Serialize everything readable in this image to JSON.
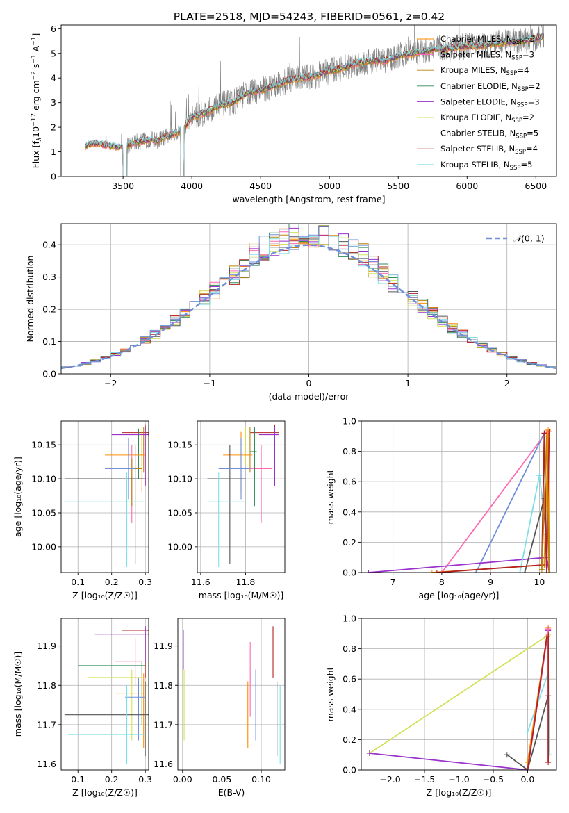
{
  "figure_title": "PLATE=2518, MJD=54243, FIBERID=0561, z=0.42",
  "colors": {
    "Chabrier MILES": "#ff8c00",
    "Salpeter MILES": "#ff69b4",
    "Kroupa MILES": "#b8860b",
    "Chabrier ELODIE": "#2e8b57",
    "Salpeter ELODIE": "#9932cc",
    "Kroupa ELODIE": "#d4e157",
    "Chabrier STELIB": "#555555",
    "Salpeter STELIB": "#b22222",
    "Kroupa STELIB": "#7fdfe6",
    "blue": "#6f8fd8",
    "data": "#808080"
  },
  "chart_data": [
    {
      "id": "spectrum",
      "type": "line",
      "xlabel": "wavelength [Angstrom, rest frame]",
      "ylabel_parts": [
        "Flux [f",
        "λ",
        "10",
        "−17",
        " erg cm",
        "−2",
        " s",
        "−1",
        " A",
        "−1",
        "]"
      ],
      "xlim": [
        3050,
        6650
      ],
      "ylim": [
        0,
        6.15
      ],
      "xticks": [
        3500,
        4000,
        4500,
        5000,
        5500,
        6000,
        6500
      ],
      "yticks": [
        0,
        1,
        2,
        3,
        4,
        5,
        6
      ],
      "legend_position": "upper right",
      "legend": [
        {
          "name": "Chabrier MILES",
          "nssp": "5"
        },
        {
          "name": "Salpeter MILES",
          "nssp": "3"
        },
        {
          "name": "Kroupa MILES",
          "nssp": "4"
        },
        {
          "name": "Chabrier ELODIE",
          "nssp": "2"
        },
        {
          "name": "Salpeter ELODIE",
          "nssp": "3"
        },
        {
          "name": "Kroupa ELODIE",
          "nssp": "2"
        },
        {
          "name": "Chabrier STELIB",
          "nssp": "5"
        },
        {
          "name": "Salpeter STELIB",
          "nssp": "4"
        },
        {
          "name": "Kroupa STELIB",
          "nssp": "5"
        }
      ],
      "nssp_label": "N",
      "nssp_sub": "SSP",
      "continuum": {
        "x": [
          3220,
          3250,
          3300,
          3350,
          3400,
          3450,
          3500,
          3550,
          3600,
          3650,
          3700,
          3750,
          3800,
          3850,
          3900,
          3950,
          4000,
          4100,
          4200,
          4300,
          4400,
          4500,
          4600,
          4700,
          4800,
          4900,
          5000,
          5100,
          5200,
          5300,
          5400,
          5500,
          5600,
          5700,
          5800,
          5900,
          6000,
          6100,
          6200,
          6300,
          6400,
          6500,
          6550
        ],
        "y": [
          1.2,
          1.3,
          1.35,
          1.3,
          1.25,
          1.2,
          1.2,
          1.3,
          1.4,
          1.45,
          1.5,
          1.45,
          1.6,
          1.7,
          1.8,
          2.0,
          2.4,
          2.6,
          2.9,
          3.0,
          3.4,
          3.5,
          3.7,
          3.9,
          4.0,
          4.1,
          4.3,
          4.4,
          4.6,
          4.7,
          4.7,
          4.9,
          5.0,
          5.1,
          5.2,
          5.2,
          5.3,
          5.3,
          5.4,
          5.45,
          5.5,
          5.6,
          5.7
        ]
      }
    },
    {
      "id": "residuals",
      "type": "histogram",
      "xlabel": "(data-model)/error",
      "ylabel": "Normed distribution",
      "xlim": [
        -2.5,
        2.5
      ],
      "ylim": [
        0,
        0.465
      ],
      "xticks": [
        -2,
        -1,
        0,
        1,
        2
      ],
      "yticks": [
        0.0,
        0.1,
        0.2,
        0.3,
        0.4
      ],
      "grid": true,
      "legend_position": "upper right",
      "gaussian_label_script": "𝒩",
      "gaussian_label_args": "(0, 1)",
      "bin_width": 0.1
    },
    {
      "id": "age_vs_Z",
      "type": "errorbar",
      "xlabel": "Z [log₁₀(Z/Z☉)]",
      "ylabel": "age  [log₁₀(age/yr)]",
      "xlim": [
        0.05,
        0.31
      ],
      "ylim": [
        9.962,
        10.185
      ],
      "xticks": [
        0.1,
        0.2,
        0.3
      ],
      "yticks": [
        10.0,
        10.05,
        10.1,
        10.15
      ],
      "grid": true,
      "points": [
        {
          "model": "Salpeter STELIB",
          "x": 0.3,
          "y": 10.168,
          "x_lo": 0.23,
          "x_hi": 0.31,
          "y_lo": 10.09,
          "y_hi": 10.18
        },
        {
          "model": "Kroupa MILES",
          "x": 0.295,
          "y": 10.163,
          "x_lo": 0.1,
          "x_hi": 0.3,
          "y_lo": 10.11,
          "y_hi": 10.176
        },
        {
          "model": "Kroupa ELODIE",
          "x": 0.29,
          "y": 10.163,
          "x_lo": 0.15,
          "x_hi": 0.3,
          "y_lo": 10.12,
          "y_hi": 10.176
        },
        {
          "model": "Chabrier ELODIE",
          "x": 0.28,
          "y": 10.163,
          "x_lo": 0.1,
          "x_hi": 0.29,
          "y_lo": 10.1,
          "y_hi": 10.174
        },
        {
          "model": "Salpeter ELODIE",
          "x": 0.3,
          "y": 10.165,
          "x_lo": 0.2,
          "x_hi": 0.31,
          "y_lo": 10.09,
          "y_hi": 10.176
        },
        {
          "model": "Chabrier MILES",
          "x": 0.29,
          "y": 10.135,
          "x_lo": 0.18,
          "x_hi": 0.3,
          "y_lo": 10.08,
          "y_hi": 10.17
        },
        {
          "model": "Salpeter MILES",
          "x": 0.26,
          "y": 10.115,
          "x_lo": 0.21,
          "x_hi": 0.29,
          "y_lo": 10.035,
          "y_hi": 10.15
        },
        {
          "model": "Kroupa MILES",
          "x": 0.26,
          "y": 10.115,
          "x_lo": 0.2,
          "x_hi": 0.29,
          "y_lo": 10.06,
          "y_hi": 10.13
        },
        {
          "model": "Chabrier STELIB",
          "x": 0.27,
          "y": 10.1,
          "x_lo": 0.06,
          "x_hi": 0.3,
          "y_lo": 9.975,
          "y_hi": 10.15
        },
        {
          "model": "Kroupa STELIB",
          "x": 0.245,
          "y": 10.066,
          "x_lo": 0.06,
          "x_hi": 0.3,
          "y_lo": 9.97,
          "y_hi": 10.11
        },
        {
          "model": "blue",
          "x": 0.25,
          "y": 10.115,
          "x_lo": 0.18,
          "x_hi": 0.27,
          "y_lo": 10.07,
          "y_hi": 10.16
        }
      ]
    },
    {
      "id": "age_vs_mass",
      "type": "errorbar",
      "xlabel": "mass [log₁₀(M/M☉)]",
      "xlim": [
        11.585,
        11.975
      ],
      "ylim": [
        9.962,
        10.185
      ],
      "xticks": [
        11.6,
        11.8
      ],
      "yticks": [
        10.0,
        10.05,
        10.1,
        10.15
      ],
      "grid": true,
      "points": [
        {
          "model": "Salpeter STELIB",
          "x": 11.93,
          "y": 10.168,
          "x_lo": 11.82,
          "x_hi": 11.95,
          "y_lo": 10.09,
          "y_hi": 10.18
        },
        {
          "model": "Kroupa MILES",
          "x": 11.82,
          "y": 10.163,
          "x_lo": 11.7,
          "x_hi": 11.86,
          "y_lo": 10.11,
          "y_hi": 10.176
        },
        {
          "model": "Kroupa ELODIE",
          "x": 11.8,
          "y": 10.163,
          "x_lo": 11.66,
          "x_hi": 11.84,
          "y_lo": 10.12,
          "y_hi": 10.176
        },
        {
          "model": "Chabrier ELODIE",
          "x": 11.84,
          "y": 10.163,
          "x_lo": 11.7,
          "x_hi": 11.86,
          "y_lo": 10.1,
          "y_hi": 10.174
        },
        {
          "model": "Salpeter ELODIE",
          "x": 11.93,
          "y": 10.165,
          "x_lo": 11.86,
          "x_hi": 11.95,
          "y_lo": 10.09,
          "y_hi": 10.176
        },
        {
          "model": "Chabrier MILES",
          "x": 11.78,
          "y": 10.135,
          "x_lo": 11.7,
          "x_hi": 11.83,
          "y_lo": 10.08,
          "y_hi": 10.17
        },
        {
          "model": "Salpeter MILES",
          "x": 11.87,
          "y": 10.115,
          "x_lo": 11.8,
          "x_hi": 11.92,
          "y_lo": 10.035,
          "y_hi": 10.15
        },
        {
          "model": "Chabrier STELIB",
          "x": 11.73,
          "y": 10.1,
          "x_lo": 11.63,
          "x_hi": 11.8,
          "y_lo": 9.975,
          "y_hi": 10.15
        },
        {
          "model": "Kroupa STELIB",
          "x": 11.68,
          "y": 10.066,
          "x_lo": 11.63,
          "x_hi": 11.8,
          "y_lo": 9.97,
          "y_hi": 10.11
        },
        {
          "model": "blue",
          "x": 11.78,
          "y": 10.115,
          "x_lo": 11.68,
          "x_hi": 11.82,
          "y_lo": 10.07,
          "y_hi": 10.16
        },
        {
          "model": "Chabrier ELODIE",
          "x": 11.84,
          "y": 10.14,
          "x_lo": 11.82,
          "x_hi": 11.85,
          "y_lo": 10.06,
          "y_hi": 10.176
        }
      ]
    },
    {
      "id": "weight_vs_age",
      "type": "line",
      "xlabel": "age  [log₁₀(age/yr)]",
      "ylabel": "mass weight",
      "xlim": [
        6.35,
        10.35
      ],
      "ylim": [
        0,
        1.0
      ],
      "xticks": [
        7,
        8,
        9,
        10
      ],
      "yticks": [
        0.0,
        0.2,
        0.4,
        0.6,
        0.8,
        1.0
      ],
      "grid": true,
      "series": [
        {
          "model": "Salpeter MILES",
          "x": [
            8.0,
            10.15,
            10.2
          ],
          "y": [
            0.0,
            0.93,
            0.0
          ]
        },
        {
          "model": "blue",
          "x": [
            8.7,
            10.1,
            10.15
          ],
          "y": [
            0.0,
            0.92,
            0.0
          ]
        },
        {
          "model": "Salpeter ELODIE",
          "x": [
            6.5,
            10.15,
            10.2
          ],
          "y": [
            0.0,
            0.1,
            0.0
          ]
        },
        {
          "model": "Kroupa STELIB",
          "x": [
            9.6,
            10.0,
            10.15
          ],
          "y": [
            0.0,
            0.64,
            0.25
          ]
        },
        {
          "model": "Chabrier STELIB",
          "x": [
            9.7,
            10.1,
            10.15
          ],
          "y": [
            0.0,
            0.49,
            0.0
          ]
        },
        {
          "model": "Chabrier MILES",
          "x": [
            7.8,
            10.1,
            10.18,
            10.2
          ],
          "y": [
            0.0,
            0.05,
            0.94,
            0.0
          ]
        },
        {
          "model": "Salpeter STELIB",
          "x": [
            7.9,
            10.05,
            10.1,
            10.15,
            10.2
          ],
          "y": [
            0.0,
            0.05,
            0.92,
            0.0,
            0.93
          ]
        },
        {
          "model": "Kroupa MILES",
          "x": [
            10.05,
            10.15,
            10.2
          ],
          "y": [
            0.02,
            0.9,
            0.0
          ]
        }
      ]
    },
    {
      "id": "mass_vs_Z",
      "type": "errorbar",
      "xlabel": "Z [log₁₀(Z/Z☉)]",
      "ylabel": "mass [log₁₀(M/M☉)]",
      "xlim": [
        0.05,
        0.31
      ],
      "ylim": [
        11.585,
        11.97
      ],
      "xticks": [
        0.1,
        0.2,
        0.3
      ],
      "yticks": [
        11.6,
        11.7,
        11.8,
        11.9
      ],
      "grid": true,
      "points": [
        {
          "model": "Salpeter STELIB",
          "x": 0.3,
          "y": 11.94,
          "x_lo": 0.23,
          "x_hi": 0.31,
          "y_lo": 11.82,
          "y_hi": 11.95
        },
        {
          "model": "Salpeter ELODIE",
          "x": 0.3,
          "y": 11.93,
          "x_lo": 0.15,
          "x_hi": 0.31,
          "y_lo": 11.86,
          "y_hi": 11.95
        },
        {
          "model": "Chabrier ELODIE",
          "x": 0.29,
          "y": 11.85,
          "x_lo": 0.1,
          "x_hi": 0.3,
          "y_lo": 11.7,
          "y_hi": 11.86
        },
        {
          "model": "Salpeter MILES",
          "x": 0.27,
          "y": 11.86,
          "x_lo": 0.21,
          "x_hi": 0.29,
          "y_lo": 11.8,
          "y_hi": 11.92
        },
        {
          "model": "Kroupa ELODIE",
          "x": 0.26,
          "y": 11.82,
          "x_lo": 0.13,
          "x_hi": 0.29,
          "y_lo": 11.66,
          "y_hi": 11.84
        },
        {
          "model": "Chabrier MILES",
          "x": 0.295,
          "y": 11.78,
          "x_lo": 0.21,
          "x_hi": 0.3,
          "y_lo": 11.64,
          "y_hi": 11.83
        },
        {
          "model": "blue",
          "x": 0.28,
          "y": 11.77,
          "x_lo": 0.24,
          "x_hi": 0.3,
          "y_lo": 11.66,
          "y_hi": 11.82
        },
        {
          "model": "Chabrier STELIB",
          "x": 0.3,
          "y": 11.725,
          "x_lo": 0.06,
          "x_hi": 0.31,
          "y_lo": 11.62,
          "y_hi": 11.81
        },
        {
          "model": "Kroupa STELIB",
          "x": 0.245,
          "y": 11.675,
          "x_lo": 0.07,
          "x_hi": 0.3,
          "y_lo": 11.6,
          "y_hi": 11.8
        }
      ]
    },
    {
      "id": "mass_vs_ebv",
      "type": "errorbar",
      "xlabel": "E(B-V)",
      "xlim": [
        -0.006,
        0.13
      ],
      "ylim": [
        11.585,
        11.97
      ],
      "xticks": [
        0.0,
        0.05,
        0.1
      ],
      "yticks": [
        11.6,
        11.7,
        11.8,
        11.9
      ],
      "grid": true,
      "vbars": [
        {
          "model": "Salpeter ELODIE",
          "x": 0.001,
          "y_lo": 11.84,
          "y_hi": 11.94
        },
        {
          "model": "Kroupa ELODIE",
          "x": 0.002,
          "y_lo": 11.66,
          "y_hi": 11.84
        },
        {
          "model": "Chabrier MILES",
          "x": 0.083,
          "y_lo": 11.64,
          "y_hi": 11.81
        },
        {
          "model": "Salpeter MILES",
          "x": 0.086,
          "y_lo": 11.72,
          "y_hi": 11.91
        },
        {
          "model": "blue",
          "x": 0.093,
          "y_lo": 11.66,
          "y_hi": 11.84
        },
        {
          "model": "Salpeter STELIB",
          "x": 0.115,
          "y_lo": 11.82,
          "y_hi": 11.95
        },
        {
          "model": "Chabrier STELIB",
          "x": 0.12,
          "y_lo": 11.62,
          "y_hi": 11.81
        },
        {
          "model": "Kroupa STELIB",
          "x": 0.124,
          "y_lo": 11.6,
          "y_hi": 11.8
        }
      ]
    },
    {
      "id": "weight_vs_Z",
      "type": "line",
      "xlabel": "Z [log₁₀(Z/Z☉)]",
      "ylabel": "mass weight",
      "xlim": [
        -2.42,
        0.42
      ],
      "ylim": [
        0,
        1.0
      ],
      "xticks": [
        -2.0,
        -1.5,
        -1.0,
        -0.5,
        0.0
      ],
      "yticks": [
        0.0,
        0.2,
        0.4,
        0.6,
        0.8,
        1.0
      ],
      "grid": true,
      "series": [
        {
          "model": "Kroupa ELODIE",
          "x": [
            -2.3,
            0.3
          ],
          "y": [
            0.11,
            0.89
          ]
        },
        {
          "model": "Salpeter ELODIE",
          "x": [
            -2.3,
            0.0
          ],
          "y": [
            0.11,
            0.0
          ]
        },
        {
          "model": "Salpeter ELODIE",
          "x": [
            0.0,
            0.3
          ],
          "y": [
            0.0,
            0.92
          ]
        },
        {
          "model": "Chabrier STELIB",
          "x": [
            -0.3,
            0.0,
            0.3
          ],
          "y": [
            0.1,
            0.0,
            0.49
          ]
        },
        {
          "model": "Kroupa STELIB",
          "x": [
            0.0,
            0.3,
            0.32
          ],
          "y": [
            0.25,
            0.64,
            0.1
          ]
        },
        {
          "model": "Salpeter STELIB",
          "x": [
            0.0,
            0.3,
            0.3
          ],
          "y": [
            0.0,
            0.93,
            0.05
          ]
        },
        {
          "model": "Chabrier MILES",
          "x": [
            0.0,
            0.3
          ],
          "y": [
            0.05,
            0.94
          ]
        },
        {
          "model": "Salpeter MILES",
          "x": [
            0.0,
            0.3
          ],
          "y": [
            0.0,
            0.93
          ]
        },
        {
          "model": "Salpeter STELIB",
          "x": [
            0.0,
            0.28
          ],
          "y": [
            0.0,
            0.88
          ]
        }
      ]
    }
  ]
}
